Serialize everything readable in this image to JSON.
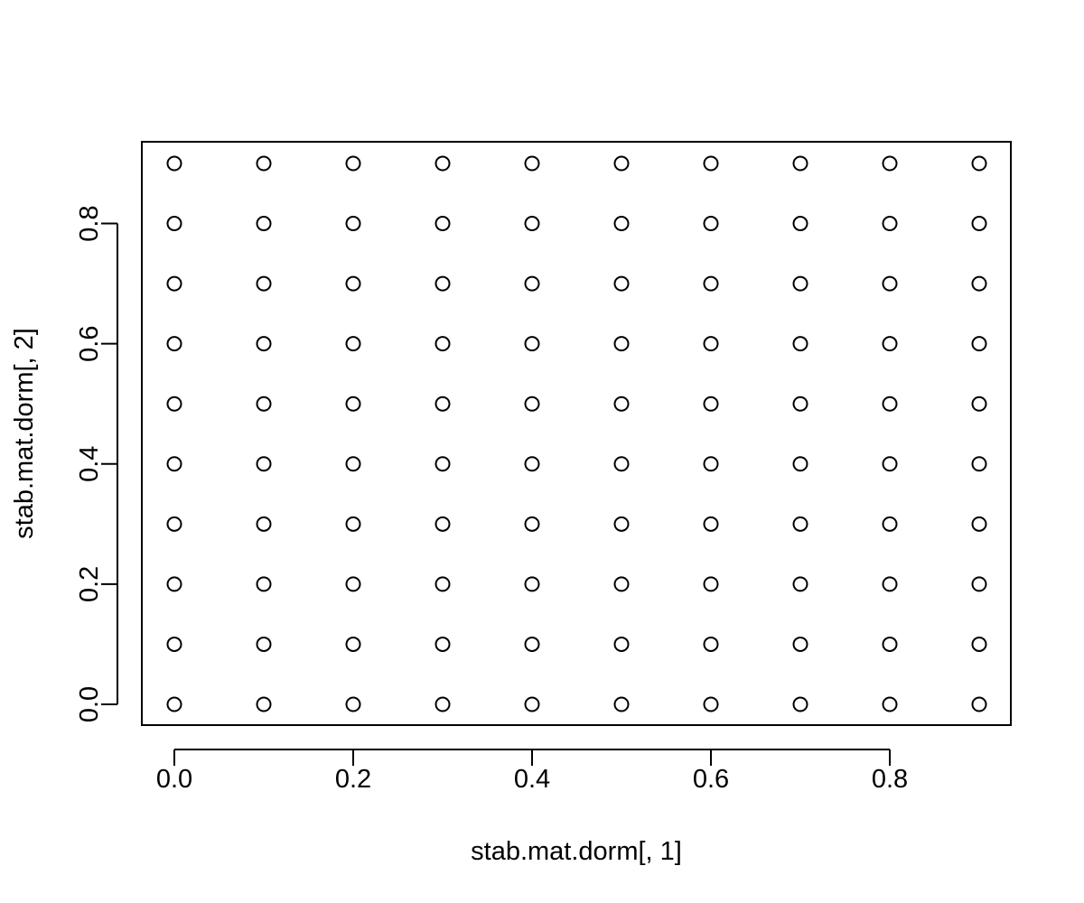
{
  "chart_data": {
    "type": "scatter",
    "title": "",
    "xlabel": "stab.mat.dorm[, 1]",
    "ylabel": "stab.mat.dorm[, 2]",
    "xlim": [
      0.0,
      0.9
    ],
    "ylim": [
      0.0,
      0.9
    ],
    "x_ticks": [
      0.0,
      0.2,
      0.4,
      0.6,
      0.8
    ],
    "x_tick_labels": [
      "0.0",
      "0.2",
      "0.4",
      "0.6",
      "0.8"
    ],
    "y_ticks": [
      0.0,
      0.2,
      0.4,
      0.6,
      0.8
    ],
    "y_tick_labels": [
      "0.0",
      "0.2",
      "0.4",
      "0.6",
      "0.8"
    ],
    "grid": false,
    "legend": "none",
    "marker": "open-circle",
    "x_values": [
      0.0,
      0.1,
      0.2,
      0.3,
      0.4,
      0.5,
      0.6,
      0.7,
      0.8,
      0.9
    ],
    "y_values": [
      0.0,
      0.1,
      0.2,
      0.3,
      0.4,
      0.5,
      0.6,
      0.7,
      0.8,
      0.9
    ],
    "points_note": ""
  }
}
